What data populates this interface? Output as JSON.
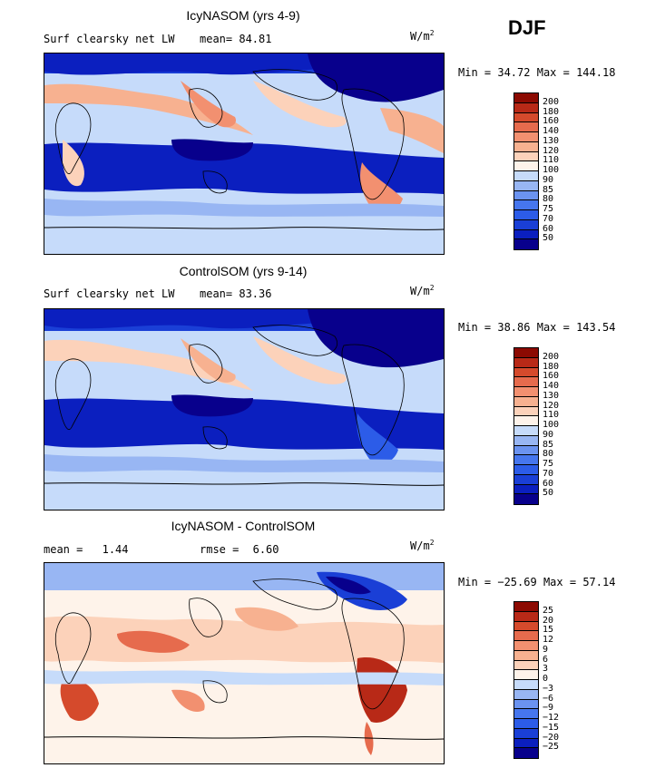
{
  "season": "DJF",
  "palette_main": [
    "#08008c",
    "#0b1fbf",
    "#1a3fd6",
    "#2c5ce8",
    "#4676ee",
    "#6b93f0",
    "#98b6f3",
    "#c6dbfa",
    "#fef3ea",
    "#fcd2ba",
    "#f7b190",
    "#f29070",
    "#e66b4d",
    "#d54a2c",
    "#b82917",
    "#8c0a02"
  ],
  "palette_diff": [
    "#08008c",
    "#0b1fbf",
    "#1a3fd6",
    "#2c5ce8",
    "#4676ee",
    "#6b93f0",
    "#98b6f3",
    "#c6dbfa",
    "#fef3ea",
    "#fcd2ba",
    "#f7b190",
    "#f29070",
    "#e66b4d",
    "#d54a2c",
    "#b82917",
    "#8c0a02"
  ],
  "panels": [
    {
      "title": "IcyNASOM (yrs 4-9)",
      "variable": "Surf clearsky net LW",
      "mean_label": "mean=",
      "mean_value": "84.81",
      "units": "W/m",
      "units_sup": "2",
      "min_label": "Min =",
      "min_value": "34.72",
      "max_label": "Max =",
      "max_value": "144.18",
      "colorbar_ticks": [
        "200",
        "180",
        "160",
        "140",
        "130",
        "120",
        "110",
        "100",
        "90",
        "85",
        "80",
        "75",
        "70",
        "60",
        "50"
      ]
    },
    {
      "title": "ControlSOM (yrs 9-14)",
      "variable": "Surf clearsky net LW",
      "mean_label": "mean=",
      "mean_value": "83.36",
      "units": "W/m",
      "units_sup": "2",
      "min_label": "Min =",
      "min_value": "38.86",
      "max_label": "Max =",
      "max_value": "143.54",
      "colorbar_ticks": [
        "200",
        "180",
        "160",
        "140",
        "130",
        "120",
        "110",
        "100",
        "90",
        "85",
        "80",
        "75",
        "70",
        "60",
        "50"
      ]
    },
    {
      "title": "IcyNASOM - ControlSOM",
      "mean_label": "mean =",
      "mean_value": "1.44",
      "rmse_label": "rmse =",
      "rmse_value": "6.60",
      "units": "W/m",
      "units_sup": "2",
      "min_label": "Min =",
      "min_value": "−25.69",
      "max_label": "Max =",
      "max_value": "57.14",
      "colorbar_ticks": [
        "25",
        "20",
        "15",
        "12",
        "9",
        "6",
        "3",
        "0",
        "−3",
        "−6",
        "−9",
        "−12",
        "−15",
        "−20",
        "−25"
      ]
    }
  ]
}
